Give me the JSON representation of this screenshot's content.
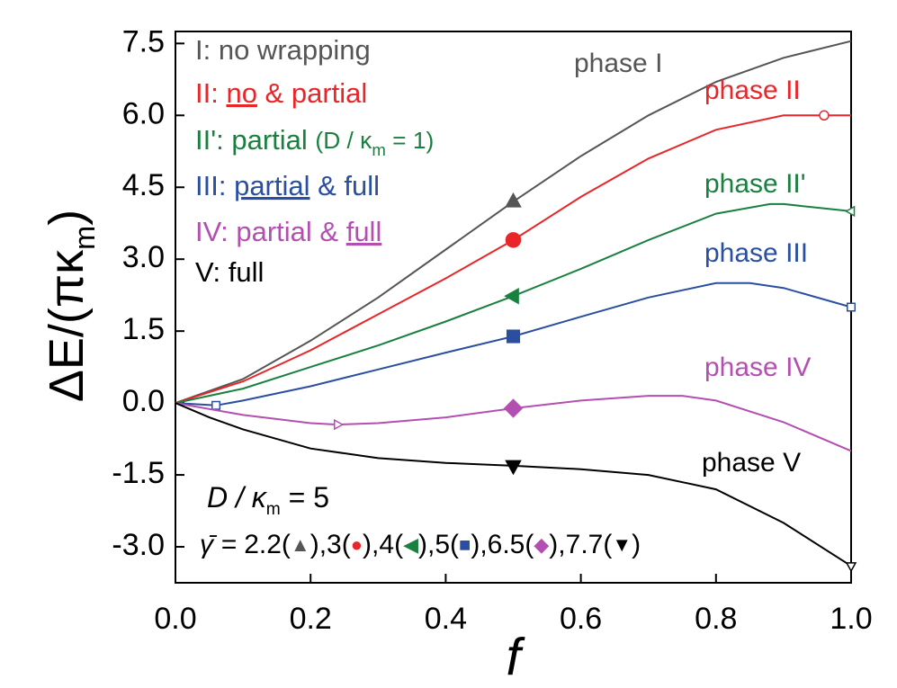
{
  "chart_data": {
    "type": "line",
    "xlabel": "f",
    "ylabel": [
      {
        "text": "ΔE/(πκ"
      },
      {
        "text": "m",
        "sub": true
      },
      {
        "text": ")"
      }
    ],
    "xlim": [
      0,
      1
    ],
    "ylim": [
      -3.75,
      7.75
    ],
    "xticks": [
      {
        "value": 0,
        "label": "0.0"
      },
      0.2,
      0.4,
      0.6,
      0.8,
      {
        "value": 1,
        "label": "1.0"
      }
    ],
    "yticks": [
      {
        "value": -3,
        "label": "-3.0"
      },
      -1.5,
      {
        "value": 0,
        "label": "0.0"
      },
      1.5,
      {
        "value": 3,
        "label": "3.0"
      },
      4.5,
      {
        "value": 6,
        "label": "6.0"
      },
      7.5
    ],
    "series": [
      {
        "name": "phase I",
        "color": "#555555",
        "marker": "triangle-up",
        "gamma": 2.2,
        "symbol": "▲",
        "legend": [
          {
            "text": "I: no wrapping"
          }
        ],
        "x": [
          0,
          0.1,
          0.2,
          0.3,
          0.4,
          0.5,
          0.6,
          0.7,
          0.8,
          0.9,
          1.0
        ],
        "values": [
          0,
          0.5,
          1.3,
          2.2,
          3.2,
          4.2,
          5.15,
          6.0,
          6.7,
          7.2,
          7.55
        ],
        "markers": [
          {
            "x": 0.5,
            "y": 4.2,
            "filled": true
          }
        ]
      },
      {
        "name": "phase II",
        "color": "#e8262a",
        "marker": "circle",
        "gamma": 3,
        "symbol": "●",
        "legend": [
          {
            "text": "II: "
          },
          {
            "text": "no",
            "underline": true
          },
          {
            "text": " & partial"
          }
        ],
        "x": [
          0,
          0.1,
          0.2,
          0.3,
          0.4,
          0.5,
          0.6,
          0.7,
          0.8,
          0.9,
          0.96,
          1.0
        ],
        "values": [
          0,
          0.45,
          1.1,
          1.85,
          2.6,
          3.4,
          4.3,
          5.1,
          5.7,
          6.0,
          6.0,
          6.0
        ],
        "markers": [
          {
            "x": 0.5,
            "y": 3.4,
            "filled": true
          },
          {
            "x": 0.96,
            "y": 6.0,
            "filled": false
          }
        ]
      },
      {
        "name": "phase II'",
        "color": "#1a8040",
        "marker": "triangle-left",
        "gamma": 4,
        "symbol": "◀",
        "legend": [
          {
            "text": "II': partial "
          },
          {
            "text": "(D / κ",
            "small": true
          },
          {
            "text": "m",
            "sub": true
          },
          {
            "text": " = 1)",
            "small": true
          }
        ],
        "x": [
          0,
          0.1,
          0.2,
          0.3,
          0.4,
          0.5,
          0.6,
          0.7,
          0.8,
          0.88,
          0.9,
          1.0
        ],
        "values": [
          0,
          0.3,
          0.75,
          1.2,
          1.7,
          2.23,
          2.8,
          3.4,
          3.95,
          4.15,
          4.15,
          4.0
        ],
        "markers": [
          {
            "x": 0.5,
            "y": 2.23,
            "filled": true
          },
          {
            "x": 1.0,
            "y": 4.0,
            "filled": false
          }
        ]
      },
      {
        "name": "phase III",
        "color": "#2a4ea0",
        "marker": "square",
        "gamma": 5,
        "symbol": "■",
        "legend": [
          {
            "text": "III: "
          },
          {
            "text": "partial",
            "underline": true
          },
          {
            "text": " & full"
          }
        ],
        "x": [
          0,
          0.06,
          0.1,
          0.2,
          0.3,
          0.4,
          0.5,
          0.6,
          0.7,
          0.8,
          0.85,
          0.9,
          1.0
        ],
        "values": [
          0,
          -0.05,
          0.05,
          0.35,
          0.7,
          1.05,
          1.39,
          1.8,
          2.2,
          2.5,
          2.5,
          2.4,
          2.0
        ],
        "markers": [
          {
            "x": 0.5,
            "y": 1.39,
            "filled": true
          },
          {
            "x": 0.06,
            "y": -0.05,
            "filled": false
          },
          {
            "x": 1.0,
            "y": 2.0,
            "filled": false
          }
        ]
      },
      {
        "name": "phase IV",
        "color": "#b44fb2",
        "marker": "diamond",
        "gamma": 6.5,
        "symbol": "◆",
        "legend": [
          {
            "text": "IV: partial & "
          },
          {
            "text": "full",
            "underline": true
          }
        ],
        "x": [
          0,
          0.1,
          0.2,
          0.24,
          0.3,
          0.4,
          0.5,
          0.6,
          0.7,
          0.75,
          0.8,
          0.9,
          1.0
        ],
        "values": [
          0,
          -0.25,
          -0.42,
          -0.45,
          -0.42,
          -0.3,
          -0.11,
          0.05,
          0.15,
          0.15,
          0.05,
          -0.4,
          -1.0
        ],
        "markers": [
          {
            "x": 0.5,
            "y": -0.11,
            "filled": true
          },
          {
            "x": 0.24,
            "y": -0.45,
            "filled": false
          }
        ]
      },
      {
        "name": "phase V",
        "color": "#000000",
        "marker": "triangle-down",
        "gamma": 7.7,
        "symbol": "▼",
        "legend": [
          {
            "text": "V: full"
          }
        ],
        "x": [
          0,
          0.05,
          0.1,
          0.2,
          0.3,
          0.4,
          0.5,
          0.6,
          0.7,
          0.8,
          0.9,
          1.0
        ],
        "values": [
          0,
          -0.3,
          -0.55,
          -0.95,
          -1.15,
          -1.25,
          -1.31,
          -1.38,
          -1.5,
          -1.8,
          -2.5,
          -3.4
        ],
        "markers": [
          {
            "x": 0.5,
            "y": -1.31,
            "filled": true
          },
          {
            "x": 1.0,
            "y": -3.4,
            "filled": false
          }
        ]
      }
    ],
    "annotation": {
      "ratio": [
        {
          "text": "D / κ",
          "italic": true
        },
        {
          "text": "m",
          "sub": true
        },
        {
          "text": " = 5"
        }
      ],
      "prefix": "γ̄ = ",
      "open": "(",
      "close": ")",
      "separator": ","
    }
  }
}
